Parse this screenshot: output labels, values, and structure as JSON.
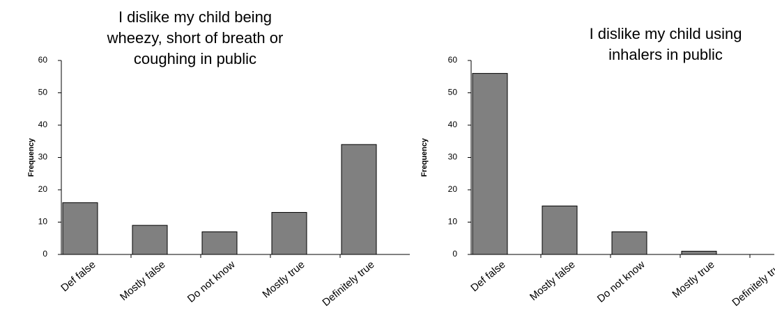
{
  "chart_data": [
    {
      "type": "bar",
      "title": [
        "I dislike my child being",
        "wheezy, short of breath or",
        "coughing in public"
      ],
      "y_label": "Frequency",
      "categories": [
        "Def false",
        "Mostly false",
        "Do not know",
        "Mostly true",
        "Definitely true"
      ],
      "values": [
        16,
        9,
        7,
        13,
        34
      ],
      "color": "#808080",
      "ylim": [
        0,
        60
      ],
      "yticks": [
        0,
        10,
        20,
        30,
        40,
        50,
        60
      ]
    },
    {
      "type": "bar",
      "title": [
        "I dislike my child using",
        "inhalers in public"
      ],
      "y_label": "Frequency",
      "categories": [
        "Def false",
        "Mostly false",
        "Do not know",
        "Mostly true",
        "Definitely true"
      ],
      "values": [
        56,
        15,
        7,
        1,
        0
      ],
      "color": "#808080",
      "ylim": [
        0,
        60
      ],
      "yticks": [
        0,
        10,
        20,
        30,
        40,
        50,
        60
      ]
    }
  ]
}
